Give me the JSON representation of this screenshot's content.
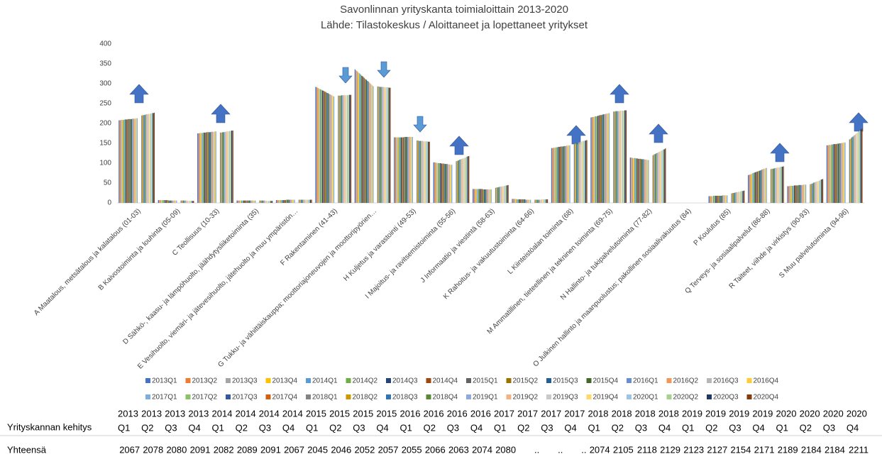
{
  "chart_data": {
    "type": "bar",
    "title": "Savonlinnan yrityskanta toimialoittain 2013-2020",
    "subtitle": "Lähde: Tilastokeskus / Aloittaneet ja lopettaneet yritykset",
    "categories": [
      "A Maatalous, metsätalous ja kalatalous (01-03)",
      "B Kaivostoiminta ja louhinta (05-09)",
      "C Teollisuus (10-33)",
      "D Sähkö-, kaasu- ja lämpöhuolto, jäähdytysliiketoiminta (35)",
      "E Vesihuolto, viemäri- ja jätevesihuolto, jätehuolto ja muu ympäristön…",
      "F Rakentaminen (41-43)",
      "G Tukku- ja vähittäiskauppa; moottoriajoneuvojen ja moottoripyörien…",
      "H Kuljetus ja varastointi (49-53)",
      "I Majoitus- ja ravitsemistoiminta (55-56)",
      "J Informaatio ja viestintä (58-63)",
      "K Rahoitus- ja vakuutustoiminta (64-66)",
      "L Kiinteistöalan toiminta (68)",
      "M Ammatillinen, tieteellinen ja tekninen toiminta (69-75)",
      "N Hallinto- ja tukipalvelutoiminta (77-82)",
      "O Julkinen hallinto ja maanpuolustus; pakollinen sosiaalivakuutus (84)",
      "P Koulutus (85)",
      "Q Terveys- ja sosiaalipalvelut (86-88)",
      "R Taiteet, viihde ja virkistys (90-93)",
      "S Muu palvelutoiminta (94-96)"
    ],
    "ylim": [
      0,
      400
    ],
    "yticks": [
      0,
      50,
      100,
      150,
      200,
      250,
      300,
      350,
      400
    ],
    "grid": false,
    "series": [
      {
        "name": "2013Q1",
        "color": "#4472C4",
        "values": [
          208,
          7,
          175,
          6,
          7,
          292,
          336,
          165,
          102,
          35,
          10,
          138,
          215,
          114,
          0,
          17,
          70,
          42,
          145
        ]
      },
      {
        "name": "2013Q2",
        "color": "#ED7D31",
        "values": [
          208,
          7,
          175,
          6,
          7,
          291,
          333,
          165,
          102,
          35,
          10,
          138,
          216,
          114,
          0,
          17,
          71,
          42,
          145
        ]
      },
      {
        "name": "2013Q3",
        "color": "#A5A5A5",
        "values": [
          209,
          7,
          176,
          6,
          7,
          289,
          331,
          165,
          101,
          35,
          10,
          139,
          216,
          113,
          0,
          17,
          72,
          43,
          146
        ]
      },
      {
        "name": "2013Q4",
        "color": "#FFC000",
        "values": [
          209,
          7,
          176,
          6,
          7,
          288,
          328,
          165,
          101,
          35,
          10,
          139,
          217,
          113,
          0,
          17,
          73,
          43,
          146
        ]
      },
      {
        "name": "2014Q1",
        "color": "#5B9BD5",
        "values": [
          209,
          7,
          176,
          6,
          7,
          286,
          326,
          165,
          100,
          35,
          9,
          140,
          218,
          113,
          0,
          18,
          75,
          43,
          147
        ]
      },
      {
        "name": "2014Q2",
        "color": "#70AD47",
        "values": [
          210,
          7,
          177,
          6,
          7,
          285,
          323,
          165,
          100,
          35,
          9,
          140,
          218,
          112,
          0,
          18,
          76,
          43,
          147
        ]
      },
      {
        "name": "2014Q3",
        "color": "#264478",
        "values": [
          210,
          7,
          177,
          6,
          7,
          283,
          320,
          165,
          100,
          35,
          9,
          141,
          219,
          112,
          0,
          18,
          77,
          44,
          148
        ]
      },
      {
        "name": "2014Q4",
        "color": "#9E480E",
        "values": [
          210,
          7,
          177,
          6,
          7,
          282,
          318,
          165,
          99,
          35,
          9,
          141,
          220,
          111,
          0,
          18,
          78,
          44,
          148
        ]
      },
      {
        "name": "2015Q1",
        "color": "#636363",
        "values": [
          211,
          7,
          178,
          6,
          7,
          280,
          315,
          165,
          99,
          35,
          9,
          142,
          221,
          111,
          0,
          18,
          79,
          44,
          148
        ]
      },
      {
        "name": "2015Q2",
        "color": "#997300",
        "values": [
          211,
          6,
          178,
          6,
          8,
          279,
          312,
          166,
          99,
          34,
          9,
          142,
          221,
          111,
          0,
          18,
          80,
          44,
          149
        ]
      },
      {
        "name": "2015Q3",
        "color": "#255E91",
        "values": [
          211,
          6,
          178,
          6,
          8,
          277,
          310,
          166,
          98,
          34,
          9,
          142,
          222,
          110,
          0,
          18,
          81,
          45,
          149
        ]
      },
      {
        "name": "2015Q4",
        "color": "#43682B",
        "values": [
          211,
          6,
          178,
          6,
          8,
          276,
          307,
          166,
          98,
          34,
          9,
          143,
          223,
          110,
          0,
          18,
          82,
          45,
          150
        ]
      },
      {
        "name": "2016Q1",
        "color": "#698ED0",
        "values": [
          212,
          6,
          179,
          6,
          8,
          274,
          305,
          166,
          98,
          34,
          8,
          143,
          223,
          110,
          0,
          19,
          84,
          45,
          150
        ]
      },
      {
        "name": "2016Q2",
        "color": "#F1975A",
        "values": [
          212,
          6,
          179,
          6,
          8,
          273,
          302,
          166,
          97,
          34,
          8,
          144,
          224,
          109,
          0,
          19,
          85,
          45,
          151
        ]
      },
      {
        "name": "2016Q3",
        "color": "#B7B7B7",
        "values": [
          212,
          6,
          179,
          6,
          8,
          271,
          299,
          166,
          97,
          34,
          8,
          144,
          225,
          109,
          0,
          19,
          86,
          46,
          151
        ]
      },
      {
        "name": "2016Q4",
        "color": "#FFCD33",
        "values": [
          213,
          6,
          180,
          6,
          8,
          270,
          297,
          166,
          96,
          34,
          8,
          145,
          225,
          108,
          0,
          19,
          87,
          46,
          152
        ]
      },
      {
        "name": "2017Q1",
        "color": "#7CAFDD",
        "values": [
          213,
          6,
          180,
          6,
          8,
          268,
          294,
          166,
          96,
          34,
          8,
          145,
          226,
          108,
          0,
          19,
          88,
          46,
          152
        ]
      },
      {
        "name": "2017Q2",
        "color": "#8CC168",
        "values": [
          null,
          null,
          null,
          null,
          null,
          null,
          null,
          null,
          null,
          null,
          null,
          null,
          null,
          null,
          null,
          null,
          null,
          null,
          null
        ]
      },
      {
        "name": "2017Q3",
        "color": "#335AA1",
        "values": [
          null,
          null,
          null,
          null,
          null,
          null,
          null,
          null,
          null,
          null,
          null,
          null,
          null,
          null,
          null,
          null,
          null,
          null,
          null
        ]
      },
      {
        "name": "2017Q4",
        "color": "#D26012",
        "values": [
          null,
          null,
          null,
          null,
          null,
          null,
          null,
          null,
          null,
          null,
          null,
          null,
          null,
          null,
          null,
          null,
          null,
          null,
          null
        ]
      },
      {
        "name": "2018Q1",
        "color": "#848484",
        "values": [
          220,
          6,
          177,
          6,
          8,
          270,
          293,
          157,
          105,
          38,
          8,
          149,
          230,
          120,
          0,
          24,
          85,
          47,
          160
        ]
      },
      {
        "name": "2018Q2",
        "color": "#CC9A00",
        "values": [
          221,
          6,
          177,
          6,
          8,
          270,
          293,
          157,
          106,
          39,
          8,
          150,
          230,
          122,
          0,
          25,
          86,
          48,
          162
        ]
      },
      {
        "name": "2018Q3",
        "color": "#3274B6",
        "values": [
          221,
          6,
          178,
          6,
          8,
          270,
          292,
          156,
          107,
          39,
          8,
          151,
          231,
          123,
          0,
          25,
          86,
          49,
          165
        ]
      },
      {
        "name": "2018Q4",
        "color": "#5A8A39",
        "values": [
          222,
          6,
          178,
          6,
          8,
          271,
          292,
          156,
          109,
          40,
          8,
          151,
          231,
          125,
          0,
          26,
          87,
          51,
          167
        ]
      },
      {
        "name": "2019Q1",
        "color": "#8FAADC",
        "values": [
          223,
          6,
          179,
          6,
          8,
          271,
          292,
          156,
          110,
          41,
          8,
          152,
          231,
          126,
          0,
          27,
          88,
          52,
          170
        ]
      },
      {
        "name": "2019Q2",
        "color": "#F4B183",
        "values": [
          223,
          6,
          179,
          6,
          8,
          271,
          292,
          156,
          111,
          41,
          8,
          153,
          231,
          128,
          0,
          27,
          88,
          53,
          172
        ]
      },
      {
        "name": "2019Q3",
        "color": "#C9C9C9",
        "values": [
          224,
          5,
          180,
          5,
          8,
          271,
          291,
          155,
          112,
          42,
          9,
          154,
          232,
          129,
          0,
          28,
          89,
          54,
          175
        ]
      },
      {
        "name": "2019Q4",
        "color": "#FFD966",
        "values": [
          224,
          5,
          180,
          5,
          8,
          271,
          291,
          155,
          113,
          42,
          9,
          155,
          232,
          131,
          0,
          28,
          89,
          55,
          177
        ]
      },
      {
        "name": "2020Q1",
        "color": "#9DC3E6",
        "values": [
          225,
          5,
          181,
          5,
          8,
          271,
          291,
          155,
          114,
          43,
          9,
          156,
          232,
          132,
          0,
          29,
          90,
          56,
          180
        ]
      },
      {
        "name": "2020Q2",
        "color": "#A9D18E",
        "values": [
          226,
          5,
          181,
          5,
          8,
          272,
          291,
          155,
          116,
          44,
          9,
          156,
          232,
          134,
          0,
          30,
          91,
          58,
          182
        ]
      },
      {
        "name": "2020Q3",
        "color": "#203864",
        "values": [
          226,
          5,
          182,
          5,
          8,
          272,
          290,
          154,
          117,
          44,
          9,
          157,
          233,
          135,
          0,
          30,
          91,
          59,
          185
        ]
      },
      {
        "name": "2020Q4",
        "color": "#843C0C",
        "values": [
          227,
          5,
          182,
          5,
          8,
          272,
          290,
          154,
          118,
          45,
          9,
          158,
          233,
          137,
          0,
          31,
          92,
          60,
          187
        ]
      }
    ]
  },
  "table": {
    "header": "Yrityskannan kehitys",
    "row_label": "Yhteensä",
    "columns": [
      [
        "2013",
        "Q1"
      ],
      [
        "2013",
        "Q2"
      ],
      [
        "2013",
        "Q3"
      ],
      [
        "2013",
        "Q4"
      ],
      [
        "2014",
        "Q1"
      ],
      [
        "2014",
        "Q2"
      ],
      [
        "2014",
        "Q3"
      ],
      [
        "2014",
        "Q4"
      ],
      [
        "2015",
        "Q1"
      ],
      [
        "2015",
        "Q2"
      ],
      [
        "2015",
        "Q3"
      ],
      [
        "2015",
        "Q4"
      ],
      [
        "2016",
        "Q1"
      ],
      [
        "2016",
        "Q2"
      ],
      [
        "2016",
        "Q3"
      ],
      [
        "2016",
        "Q4"
      ],
      [
        "2017",
        "Q1"
      ],
      [
        "2017",
        "Q2"
      ],
      [
        "2017",
        "Q3"
      ],
      [
        "2017",
        "Q4"
      ],
      [
        "2018",
        "Q1"
      ],
      [
        "2018",
        "Q2"
      ],
      [
        "2018",
        "Q3"
      ],
      [
        "2018",
        "Q4"
      ],
      [
        "2019",
        "Q1"
      ],
      [
        "2019",
        "Q2"
      ],
      [
        "2019",
        "Q3"
      ],
      [
        "2019",
        "Q4"
      ],
      [
        "2020",
        "Q1"
      ],
      [
        "2020",
        "Q2"
      ],
      [
        "2020",
        "Q3"
      ],
      [
        "2020",
        "Q4"
      ]
    ],
    "values": [
      2067,
      2078,
      2080,
      2091,
      2082,
      2089,
      2091,
      2067,
      2045,
      2046,
      2052,
      2057,
      2055,
      2066,
      2063,
      2074,
      2080,
      "..",
      "..",
      "..",
      2074,
      2105,
      2118,
      2129,
      2123,
      2127,
      2154,
      2171,
      2189,
      2184,
      2184,
      2211
    ]
  }
}
